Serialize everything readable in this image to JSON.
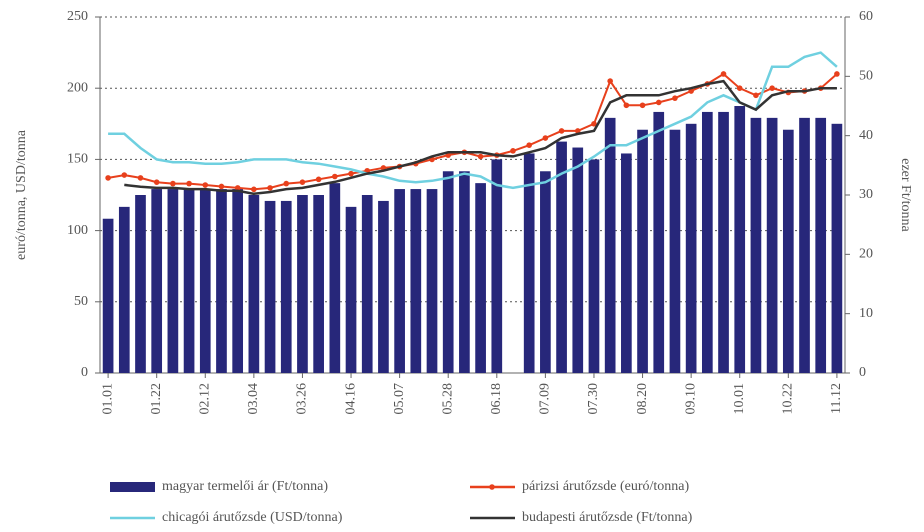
{
  "chart_data": {
    "type": "bar-line",
    "ylabel": "euró/tonna, USD/tonna",
    "y2label": "ezer Ft/tonna",
    "categories": [
      "01.01",
      null,
      null,
      "01.22",
      null,
      null,
      "02.12",
      null,
      null,
      "03.04",
      null,
      null,
      "03.26",
      null,
      null,
      "04.16",
      null,
      null,
      "05.07",
      null,
      null,
      "05.28",
      null,
      null,
      "06.18",
      null,
      null,
      "07.09",
      null,
      null,
      "07.30",
      null,
      null,
      "08.20",
      null,
      null,
      "09.10",
      null,
      null,
      "10.01",
      null,
      null,
      "10.22",
      null,
      null,
      "11.12"
    ],
    "ylim": [
      0,
      250
    ],
    "yticks": [
      0,
      50,
      100,
      150,
      200,
      250
    ],
    "y2lim": [
      0,
      60
    ],
    "y2ticks": [
      0,
      10,
      20,
      30,
      40,
      50,
      60
    ],
    "grid": true,
    "series": [
      {
        "name": "magyar termelői ár (Ft/tonna)",
        "type": "bar",
        "axis": "y2",
        "color": "#27277a",
        "values": [
          26,
          28,
          30,
          31,
          31,
          31,
          31,
          31,
          31,
          30,
          29,
          29,
          30,
          30,
          32,
          28,
          30,
          29,
          31,
          31,
          31,
          34,
          34,
          32,
          36,
          null,
          37,
          34,
          39,
          38,
          36,
          43,
          37,
          41,
          44,
          41,
          42,
          44,
          44,
          45,
          43,
          43,
          41,
          43,
          43,
          42
        ]
      },
      {
        "name": "párizsi árutőzsde (euró/tonna)",
        "type": "line",
        "markers": true,
        "color": "#e8401c",
        "values": [
          137,
          139,
          137,
          134,
          133,
          133,
          132,
          131,
          130,
          129,
          130,
          133,
          134,
          136,
          138,
          140,
          142,
          144,
          145,
          147,
          150,
          153,
          155,
          152,
          153,
          156,
          160,
          165,
          170,
          170,
          175,
          205,
          188,
          188,
          190,
          193,
          198,
          203,
          210,
          200,
          195,
          200,
          197,
          198,
          200,
          210
        ]
      },
      {
        "name": "chicagói árutőzsde (USD/tonna)",
        "type": "line",
        "color": "#6fd0e0",
        "values": [
          168,
          168,
          158,
          150,
          148,
          148,
          147,
          147,
          148,
          150,
          150,
          150,
          148,
          147,
          145,
          143,
          140,
          138,
          135,
          134,
          135,
          137,
          140,
          138,
          132,
          130,
          132,
          134,
          140,
          145,
          152,
          160,
          160,
          165,
          170,
          175,
          180,
          190,
          195,
          190,
          185,
          215,
          215,
          222,
          225,
          215
        ]
      },
      {
        "name": "budapesti árutőzsde (Ft/tonna)",
        "type": "line",
        "axis": "y2",
        "color": "#333333",
        "values": [
          null,
          31.7,
          31.4,
          31.2,
          31.2,
          31,
          31,
          30.7,
          30.7,
          30.2,
          30.5,
          31,
          31.2,
          31.7,
          32.2,
          32.9,
          33.6,
          34.1,
          34.8,
          35.5,
          36.5,
          37.2,
          37.2,
          37.2,
          36.7,
          36.5,
          37.2,
          37.9,
          39.6,
          40.3,
          40.8,
          45.6,
          46.8,
          46.8,
          46.8,
          47.5,
          48,
          48.7,
          49.2,
          45.6,
          44.4,
          46.8,
          47.5,
          47.5,
          48,
          48
        ]
      }
    ]
  }
}
